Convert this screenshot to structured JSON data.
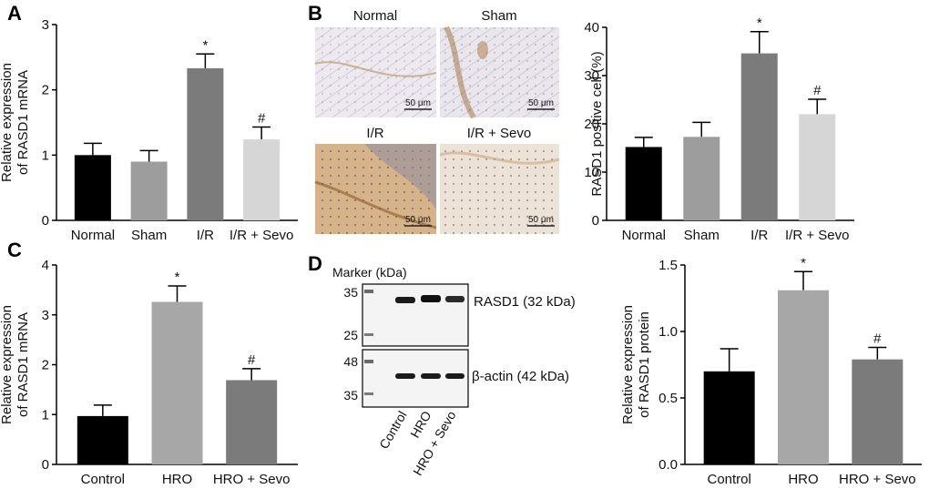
{
  "chart_data": [
    {
      "panel": "A",
      "type": "bar",
      "categories": [
        "Normal",
        "Sham",
        "I/R",
        "I/R + Sevo"
      ],
      "values": [
        1.0,
        0.9,
        2.33,
        1.24
      ],
      "errors": [
        0.18,
        0.17,
        0.22,
        0.19
      ],
      "marks": [
        "",
        "",
        "*",
        "#"
      ],
      "colors": [
        "#000000",
        "#9d9d9d",
        "#7b7b7b",
        "#d6d6d6"
      ],
      "ylabel_lines": [
        "Relative expression",
        "of RASD1 mRNA"
      ],
      "ylim": [
        0,
        3
      ],
      "yticks": [
        "0",
        "1",
        "2",
        "3"
      ]
    },
    {
      "panel": "B",
      "type": "bar",
      "categories": [
        "Normal",
        "Sham",
        "I/R",
        "I/R + Sevo"
      ],
      "values": [
        15.2,
        17.3,
        34.6,
        22.0
      ],
      "errors": [
        2.0,
        3.0,
        4.5,
        3.1
      ],
      "marks": [
        "",
        "",
        "*",
        "#"
      ],
      "colors": [
        "#000000",
        "#9d9d9d",
        "#7b7b7b",
        "#d6d6d6"
      ],
      "ylabel_lines": [
        "RASD1 positive cell (%)"
      ],
      "ylim": [
        0,
        40
      ],
      "yticks": [
        "0",
        "10",
        "20",
        "30",
        "40"
      ]
    },
    {
      "panel": "C",
      "type": "bar",
      "categories": [
        "Control",
        "HRO",
        "HRO + Sevo"
      ],
      "values": [
        0.97,
        3.26,
        1.69
      ],
      "errors": [
        0.22,
        0.32,
        0.23
      ],
      "marks": [
        "",
        "*",
        "#"
      ],
      "colors": [
        "#000000",
        "#a7a7a7",
        "#7b7b7b"
      ],
      "ylabel_lines": [
        "Relative expression",
        "of RASD1 mRNA"
      ],
      "ylim": [
        0,
        4
      ],
      "yticks": [
        "0",
        "1",
        "2",
        "3",
        "4"
      ]
    },
    {
      "panel": "D",
      "type": "bar",
      "categories": [
        "Control",
        "HRO",
        "HRO + Sevo"
      ],
      "values": [
        0.7,
        1.31,
        0.79
      ],
      "errors": [
        0.17,
        0.14,
        0.09
      ],
      "marks": [
        "",
        "*",
        "#"
      ],
      "colors": [
        "#000000",
        "#a7a7a7",
        "#7b7b7b"
      ],
      "ylabel_lines": [
        "Relative expression",
        "of RASD1 protein"
      ],
      "ylim": [
        0,
        1.5
      ],
      "yticks": [
        "0.0",
        "0.5",
        "1.0",
        "1.5"
      ]
    }
  ],
  "panel_letters": {
    "a": "A",
    "b": "B",
    "c": "C",
    "d": "D"
  },
  "micrographs": [
    {
      "label": "Normal",
      "scale": "50 μm",
      "tone": "pale"
    },
    {
      "label": "Sham",
      "scale": "50 μm",
      "tone": "pale"
    },
    {
      "label": "I/R",
      "scale": "50 μm",
      "tone": "brown"
    },
    {
      "label": "I/R + Sevo",
      "scale": "50 μm",
      "tone": "light"
    }
  ],
  "blot": {
    "marker_title": "Marker (kDa)",
    "top_markers": [
      "35",
      "25"
    ],
    "bottom_markers": [
      "48",
      "35"
    ],
    "top_band_label": "RASD1 (32 kDa)",
    "bottom_band_label": "β-actin (42 kDa)",
    "lanes": [
      "Control",
      "HRO",
      "HRO + Sevo"
    ]
  }
}
